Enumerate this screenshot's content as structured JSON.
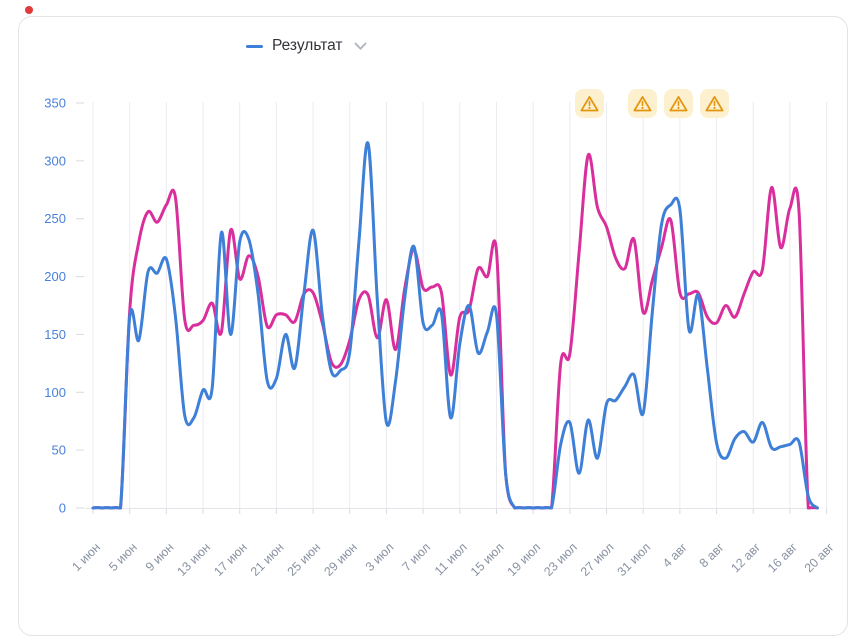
{
  "window": {
    "recording_dot_color": "#e23b3b"
  },
  "legend": {
    "series_label": "Результат",
    "marker_color": "#3e7fd7",
    "chevron_color": "#aeb3bb"
  },
  "warnings": {
    "day_indices": [
      54.1,
      59.9,
      63.8,
      67.8
    ],
    "badge_bg": "#fcf0ce",
    "icon_color": "#e2950f"
  },
  "axis": {
    "y_label_color": "#4a81d6",
    "x_label_color": "#8a93a3",
    "grid_color": "#ececf0",
    "axis_color": "#e4e4e9",
    "tick_color": "#d9dae0"
  },
  "chart_data": {
    "type": "line",
    "title": "",
    "xlabel": "",
    "ylabel": "",
    "ylim": [
      0,
      350
    ],
    "y_ticks": [
      0,
      50,
      100,
      150,
      200,
      250,
      300,
      350
    ],
    "grid": "vertical-only",
    "legend_position": "top",
    "x_start": "1 июн",
    "x_end": "20 авг",
    "tick_interval_days": 4,
    "tick_labels": [
      "1 июн",
      "5 июн",
      "9 июн",
      "13 июн",
      "17 июн",
      "21 июн",
      "25 июн",
      "29 июн",
      "3 июл",
      "7 июл",
      "11 июл",
      "15 июл",
      "19 июл",
      "23 июл",
      "27 июл",
      "31 июл",
      "4 авг",
      "8 авг",
      "12 авг",
      "16 авг",
      "20 авг"
    ],
    "series": [
      {
        "name": "Результат",
        "color": "#3e7fd7",
        "values": [
          0,
          0,
          0,
          0,
          165,
          145,
          204,
          203,
          215,
          165,
          80,
          78,
          102,
          104,
          238,
          150,
          230,
          232,
          185,
          110,
          112,
          150,
          121,
          185,
          240,
          167,
          118,
          119,
          135,
          230,
          315,
          180,
          74,
          110,
          182,
          226,
          160,
          158,
          168,
          78,
          142,
          175,
          134,
          152,
          167,
          30,
          0,
          0,
          0,
          0,
          0,
          55,
          74,
          30,
          76,
          43,
          90,
          93,
          105,
          115,
          82,
          170,
          245,
          262,
          258,
          154,
          184,
          120,
          56,
          43,
          60,
          66,
          57,
          74,
          52,
          53,
          55,
          57,
          10,
          0
        ]
      },
      {
        "name": "",
        "color": "#d92f9d",
        "values": [
          0,
          0,
          0,
          0,
          170,
          230,
          256,
          247,
          262,
          268,
          163,
          158,
          162,
          177,
          152,
          240,
          198,
          218,
          200,
          157,
          167,
          167,
          161,
          185,
          186,
          160,
          126,
          124,
          145,
          180,
          184,
          147,
          180,
          137,
          190,
          223,
          190,
          191,
          186,
          115,
          165,
          171,
          207,
          200,
          222,
          30,
          0,
          0,
          0,
          0,
          0,
          125,
          133,
          220,
          305,
          260,
          243,
          216,
          207,
          232,
          169,
          197,
          225,
          249,
          186,
          185,
          186,
          165,
          160,
          175,
          165,
          185,
          204,
          206,
          277,
          225,
          259,
          255,
          0,
          0
        ]
      }
    ]
  }
}
